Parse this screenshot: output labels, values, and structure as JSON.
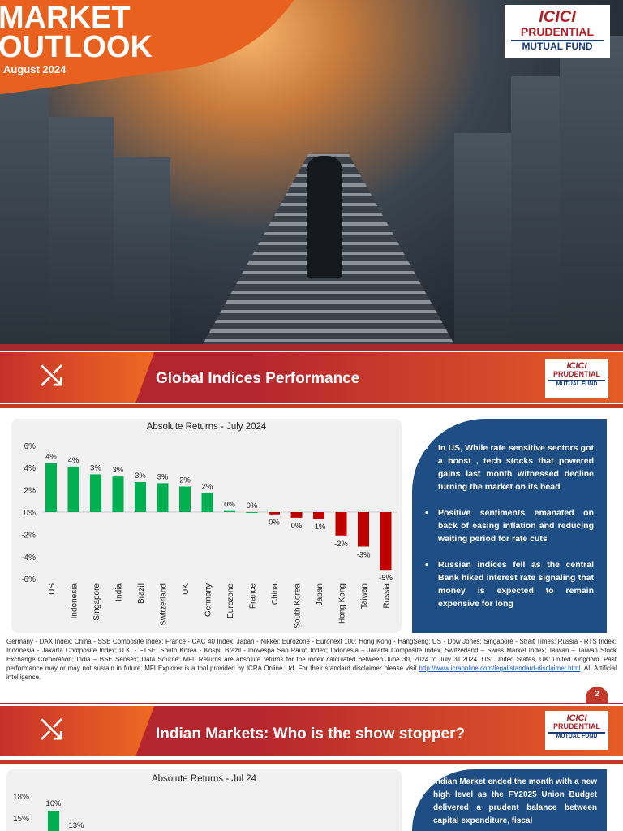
{
  "cover": {
    "title_line1": "MARKET",
    "title_line2": "OUTLOOK",
    "date": "August 2024"
  },
  "logo": {
    "line1": "ICICI",
    "line2": "PRUDENTIAL",
    "line3": "MUTUAL FUND"
  },
  "section1": {
    "title": "Global Indices Performance",
    "bullets": [
      "In US, While rate sensitive sectors got a boost , tech stocks that powered gains last month witnessed decline turning the market on its head",
      "Positive sentiments emanated on back of easing inflation and reducing waiting period for rate cuts",
      "Russian indices fell as the central Bank hiked interest rate signaling that money is expected to remain expensive for long"
    ],
    "footnote": "Germany - DAX Index; China - SSE Composite Index; France - CAC 40 Index; Japan - Nikkei; Eurozone - Euronext 100; Hong Kong - HangSeng; US - Dow Jones; Singapore - Strait Times; Russia - RTS Index; Indonesia - Jakarta Composite Index; U.K. - FTSE; South Korea - Kospi; Brazil - Ibovespa Sao Paulo Index; Indonesia – Jakarta Composite Index; Switzerland – Swiss Market Index; Taiwan – Taiwan Stock Exchange Corporation; India – BSE Sensex; Data Source: MFI. Returns are absolute returns for the index calculated between June 30, 2024 to July 31,2024. US: United States, UK: united Kingdom. Past performance may or may not sustain in future. MFI Explorer is a tool provided by ICRA Online Ltd. For their standard disclaimer please visit ",
    "footnote_link": "http://www.icraonline.com/legal/standard-disclaimer.html",
    "footnote_end": ". AI: Artificial intelligence."
  },
  "page_number": "2",
  "section2": {
    "title": "Indian Markets: Who is the show stopper?",
    "text": "Indian Market ended the month with a new high level as the FY2025 Union Budget delivered a prudent balance between capital expenditure, fiscal"
  },
  "chart_data": [
    {
      "type": "bar",
      "title": "Absolute Returns - July 2024",
      "ylim": [
        -6,
        6
      ],
      "yticks": [
        "6%",
        "4%",
        "2%",
        "0%",
        "-2%",
        "-4%",
        "-6%"
      ],
      "yticklabel_values": [
        6,
        4,
        2,
        0,
        -2,
        -4,
        -6
      ],
      "categories": [
        "US",
        "Indonesia",
        "Singapore",
        "India",
        "Brazil",
        "Switzerland",
        "UK",
        "Germany",
        "Eurozone",
        "France",
        "China",
        "South Korea",
        "Japan",
        "Hong Kong",
        "Taiwan",
        "Russia"
      ],
      "values": [
        4.4,
        4.1,
        3.4,
        3.2,
        2.7,
        2.6,
        2.3,
        1.7,
        0.1,
        0.0,
        -0.2,
        -0.5,
        -0.6,
        -2.1,
        -3.1,
        -5.2
      ],
      "labels": [
        "4%",
        "4%",
        "3%",
        "3%",
        "3%",
        "3%",
        "2%",
        "2%",
        "0%",
        "0%",
        "0%",
        "0%",
        "-1%",
        "-2%",
        "-3%",
        "-5%"
      ],
      "colors": {
        "positive": "#00b050",
        "negative": "#c00000"
      },
      "grid": false
    },
    {
      "type": "bar",
      "title": "Absolute Returns - Jul 24",
      "yticks": [
        "18%",
        "15%"
      ],
      "yticklabel_values": [
        18,
        15
      ],
      "values": [
        16,
        13
      ],
      "labels": [
        "16%",
        "13%"
      ],
      "colors": {
        "positive": "#00b050"
      }
    }
  ]
}
